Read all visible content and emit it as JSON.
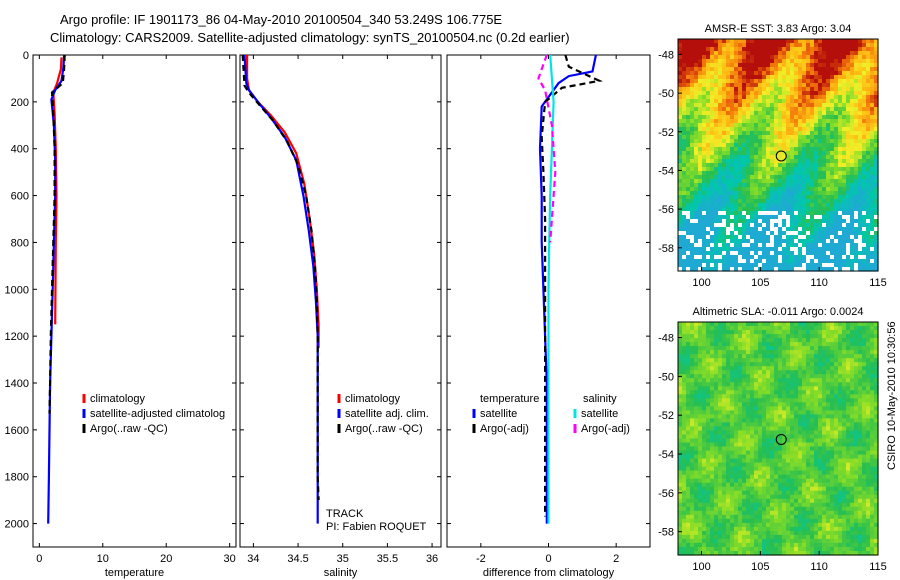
{
  "header": {
    "line1": "Argo profile: IF 1901173_86 04-May-2010 20100504_340 53.249S 106.775E",
    "line2": "Climatology: CARS2009. Satellite-adjusted climatology: synTS_20100504.nc (0.2d earlier)"
  },
  "footer_stamp": "CSIRO 10-May-2010 10:30:56",
  "colors": {
    "climatology": "#ff0000",
    "satellite": "#0000ff",
    "argo": "#000000",
    "sal_satellite": "#00e5e5",
    "sal_argo": "#ff00ff"
  },
  "chart_data": [
    {
      "id": "temperature",
      "type": "line",
      "xlabel": "temperature",
      "ylabel": "",
      "xlim": [
        -1,
        31
      ],
      "ylim": [
        0,
        2100
      ],
      "y_reversed": true,
      "xticks": [
        0,
        10,
        20,
        30
      ],
      "yticks": [
        0,
        200,
        400,
        600,
        800,
        1000,
        1200,
        1400,
        1600,
        1800,
        2000
      ],
      "legend": [
        "climatology",
        "satellite-adjusted climatolog",
        "Argo(..raw -QC)"
      ],
      "series": [
        {
          "name": "climatology",
          "color": "#ff0000",
          "x": [
            3.5,
            3.4,
            2.8,
            2.2,
            2.4,
            2.6,
            2.7,
            2.6,
            2.5
          ],
          "y": [
            10,
            60,
            120,
            160,
            250,
            400,
            600,
            800,
            1150
          ]
        },
        {
          "name": "satellite-adjusted climatology",
          "color": "#0000ff",
          "x": [
            3.9,
            3.8,
            3.5,
            2.5,
            1.9,
            2.3,
            2.5,
            2.5,
            2.3,
            2.1,
            1.9,
            1.7,
            1.6,
            1.5,
            1.4
          ],
          "y": [
            0,
            50,
            110,
            150,
            190,
            300,
            450,
            600,
            800,
            1000,
            1200,
            1400,
            1600,
            1800,
            2000
          ]
        },
        {
          "name": "Argo(..raw -QC)",
          "color": "#000000",
          "dashed": true,
          "x": [
            4.0,
            3.9,
            3.7,
            2.0,
            2.2,
            2.4,
            2.4,
            2.2,
            2.0,
            1.8,
            1.7,
            1.6
          ],
          "y": [
            0,
            60,
            120,
            160,
            250,
            400,
            600,
            800,
            1000,
            1200,
            1400,
            1530
          ]
        }
      ]
    },
    {
      "id": "salinity",
      "type": "line",
      "xlabel": "salinity",
      "xlim": [
        33.85,
        36.1
      ],
      "ylim": [
        0,
        2100
      ],
      "y_reversed": true,
      "xticks": [
        34,
        34.5,
        35,
        35.5,
        36
      ],
      "legend": [
        "climatology",
        "satellite adj. clim.",
        "Argo(..raw -QC)"
      ],
      "annotations": [
        "TRACK",
        "PI: Fabien ROQUET"
      ],
      "series": [
        {
          "name": "climatology",
          "color": "#ff0000",
          "x": [
            33.93,
            33.93,
            33.95,
            34.05,
            34.2,
            34.35,
            34.48,
            34.57,
            34.63,
            34.68,
            34.71,
            34.73,
            34.73
          ],
          "y": [
            0,
            100,
            150,
            200,
            260,
            330,
            420,
            550,
            700,
            850,
            1000,
            1150,
            1250
          ]
        },
        {
          "name": "satellite adj. clim.",
          "color": "#0000ff",
          "x": [
            33.9,
            33.92,
            33.95,
            34.05,
            34.2,
            34.35,
            34.48,
            34.56,
            34.62,
            34.67,
            34.7,
            34.72,
            34.72,
            34.72,
            34.72
          ],
          "y": [
            0,
            120,
            150,
            200,
            270,
            350,
            450,
            600,
            750,
            900,
            1050,
            1200,
            1500,
            1800,
            2000
          ]
        },
        {
          "name": "Argo(..raw -QC)",
          "color": "#000000",
          "dashed": true,
          "x": [
            33.88,
            33.9,
            33.95,
            34.06,
            34.22,
            34.38,
            34.5,
            34.59,
            34.65,
            34.69,
            34.71,
            34.72,
            34.72,
            34.72,
            34.72,
            34.73
          ],
          "y": [
            0,
            130,
            160,
            210,
            280,
            370,
            470,
            600,
            750,
            900,
            1050,
            1200,
            1400,
            1600,
            1800,
            1900
          ]
        }
      ]
    },
    {
      "id": "difference",
      "type": "line",
      "xlabel": "difference from climatology",
      "xlim": [
        -3,
        3
      ],
      "ylim": [
        0,
        2100
      ],
      "y_reversed": true,
      "xticks": [
        -2,
        0,
        2
      ],
      "legend_groups": [
        {
          "title": "temperature",
          "items": [
            "satellite",
            "Argo(-adj)"
          ]
        },
        {
          "title": "salinity",
          "items": [
            "satellite",
            "Argo(-adj)"
          ]
        }
      ],
      "series": [
        {
          "name": "temperature satellite",
          "color": "#0000ff",
          "x": [
            1.4,
            1.3,
            0.6,
            0.3,
            -0.2,
            -0.25,
            -0.2,
            -0.2,
            -0.15,
            -0.1,
            -0.05,
            -0.05,
            -0.05,
            -0.05,
            -0.05
          ],
          "y": [
            0,
            70,
            90,
            120,
            220,
            400,
            600,
            800,
            1000,
            1200,
            1400,
            1600,
            1800,
            1950,
            2000
          ]
        },
        {
          "name": "temperature Argo(-adj)",
          "color": "#000000",
          "dashed": true,
          "x": [
            0.5,
            0.6,
            1.5,
            0.4,
            -0.1,
            -0.2,
            -0.15,
            -0.1,
            -0.1,
            -0.1,
            -0.1,
            -0.1,
            -0.1,
            -0.1
          ],
          "y": [
            0,
            50,
            110,
            140,
            200,
            350,
            500,
            700,
            900,
            1100,
            1300,
            1500,
            1700,
            1970
          ]
        },
        {
          "name": "salinity satellite",
          "color": "#00e5e5",
          "x": [
            0.05,
            0.15,
            0.1,
            0.05,
            0.02,
            0.0,
            0.0,
            0.0,
            0.0,
            0.0
          ],
          "y": [
            0,
            200,
            400,
            600,
            800,
            1000,
            1200,
            1400,
            1700,
            2000
          ]
        },
        {
          "name": "salinity Argo(-adj)",
          "color": "#ff00ff",
          "dashed": true,
          "x": [
            -0.05,
            -0.3,
            -0.1,
            0.1,
            0.2,
            0.1,
            0.05
          ],
          "y": [
            0,
            100,
            150,
            300,
            500,
            700,
            800
          ]
        }
      ]
    },
    {
      "id": "sst_map",
      "type": "heatmap",
      "title": "AMSR-E SST: 3.83 Argo: 3.04",
      "xlim": [
        98,
        115
      ],
      "ylim": [
        -59.2,
        -47.2
      ],
      "xticks": [
        100,
        105,
        110,
        115
      ],
      "yticks": [
        -48,
        -50,
        -52,
        -54,
        -56,
        -58
      ],
      "marker": {
        "lon": 106.775,
        "lat": -53.249
      }
    },
    {
      "id": "sla_map",
      "type": "heatmap",
      "title": "Altimetric SLA: -0.011 Argo: 0.0024",
      "xlim": [
        98,
        115
      ],
      "ylim": [
        -59.2,
        -47.2
      ],
      "xticks": [
        100,
        105,
        110,
        115
      ],
      "yticks": [
        -48,
        -50,
        -52,
        -54,
        -56,
        -58
      ],
      "marker": {
        "lon": 106.775,
        "lat": -53.249
      }
    }
  ]
}
